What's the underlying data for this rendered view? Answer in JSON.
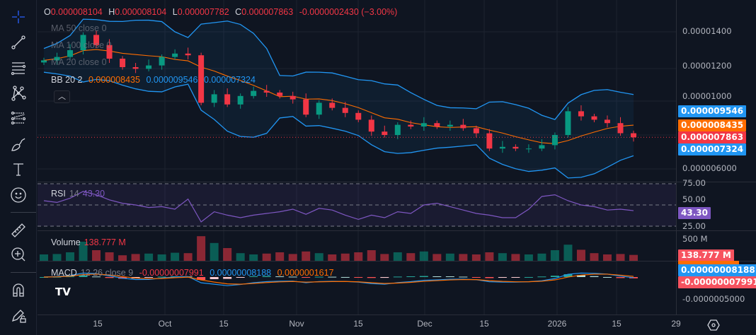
{
  "toolbar": {
    "items": [
      "crosshair-icon",
      "trend-line-icon",
      "horizontal-lines-icon",
      "pattern-icon",
      "fib-icon",
      "brush-icon",
      "text-icon",
      "emoji-icon",
      "ruler-icon",
      "zoom-in-icon",
      "magnet-icon",
      "lock-drawing-icon"
    ]
  },
  "ohlc": {
    "o_label": "O",
    "o": "0.000008104",
    "h_label": "H",
    "h": "0.000008104",
    "l_label": "L",
    "l": "0.000007782",
    "c_label": "C",
    "c": "0.000007863",
    "change": "-0.0000002430 (−3.00%)"
  },
  "indicators": {
    "ma50": "MA 50 close 0",
    "ma100": "MA 100 close 0",
    "ma20": "MA 20 close 0",
    "bb_label": "BB 20 2",
    "bb_mid": "0.000008435",
    "bb_upper": "0.000009546",
    "bb_lower": "0.000007324",
    "rsi_label": "RSI",
    "rsi_params": "14",
    "rsi_value": "43.30",
    "volume_label": "Volume",
    "volume_value": "138.777 M",
    "macd_label": "MACD",
    "macd_params": "12 26 close 9",
    "macd_hist": "-0.00000007991",
    "macd_line": "0.00000008188",
    "macd_signal": "0.0000001617"
  },
  "price_axis": {
    "ticks": [
      "0.00001400",
      "0.00001200",
      "0.00001000",
      "0.000006000"
    ],
    "rsi_ticks": [
      "75.00",
      "50.00",
      "25.00"
    ],
    "volume_tick": "500 M",
    "macd_tick": "-0.0000005000"
  },
  "badges": {
    "bb_upper": "0.000009546",
    "bb_mid": "0.000008435",
    "last": "0.000007863",
    "bb_lower": "0.000007324",
    "rsi": "43.30",
    "volume": "138.777 M",
    "macd_line": "0.00000008188",
    "macd_hist": "-0.00000007991"
  },
  "time_axis": [
    "15",
    "Oct",
    "15",
    "Nov",
    "15",
    "Dec",
    "15",
    "2026",
    "15",
    "29"
  ],
  "colors": {
    "up": "#089981",
    "down": "#f23645",
    "bb": "#2196f3",
    "basis": "#ff6d00",
    "rsi": "#7e57c2",
    "accent": "#2962ff"
  },
  "chart_data": {
    "type": "candlestick",
    "price_axis_range": [
      5e-06,
      1.55e-05
    ],
    "closes": [
      12.4,
      12.6,
      13.0,
      13.9,
      13.3,
      12.5,
      12.0,
      11.9,
      12.1,
      12.6,
      12.8,
      12.7,
      9.9,
      10.4,
      9.8,
      10.3,
      10.6,
      10.5,
      10.3,
      10.1,
      9.2,
      9.9,
      9.6,
      9.3,
      8.9,
      8.2,
      8.0,
      8.6,
      8.5,
      8.7,
      8.5,
      8.6,
      8.4,
      8.1,
      7.2,
      7.3,
      7.2,
      7.2,
      7.4,
      8.0,
      9.4,
      9.1,
      8.9,
      8.7,
      8.104,
      7.863
    ],
    "close_unit": "0.000001",
    "rsi": [
      55,
      53,
      58,
      66,
      62,
      56,
      52,
      50,
      47,
      48,
      45,
      57,
      30,
      42,
      38,
      35,
      38,
      40,
      42,
      45,
      39,
      46,
      44,
      38,
      33,
      38,
      35,
      42,
      40,
      50,
      52,
      48,
      44,
      40,
      38,
      35,
      35,
      45,
      60,
      62,
      55,
      50,
      48,
      44,
      45,
      43.3
    ],
    "rsi_range": [
      25,
      75
    ],
    "volume_millions": [
      150,
      160,
      200,
      450,
      250,
      200,
      130,
      160,
      170,
      150,
      190,
      180,
      580,
      420,
      300,
      180,
      150,
      170,
      200,
      160,
      220,
      180,
      150,
      170,
      200,
      250,
      160,
      200,
      180,
      220,
      160,
      170,
      160,
      150,
      200,
      180,
      160,
      150,
      170,
      250,
      380,
      260,
      180,
      150,
      160,
      138.777
    ]
  }
}
